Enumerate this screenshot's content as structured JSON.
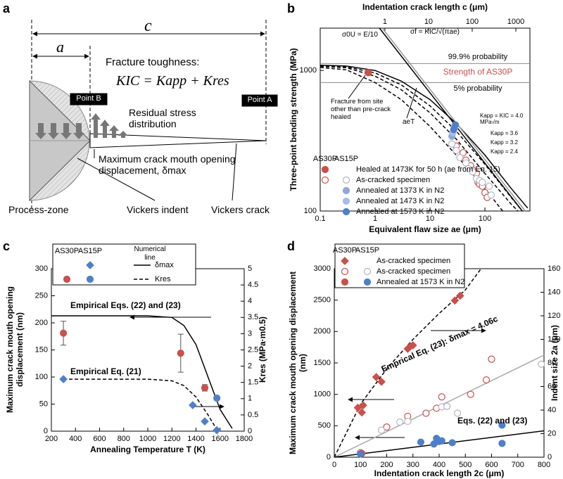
{
  "diagram": {
    "panel": "a",
    "c": "c",
    "a": "a",
    "title": "Fracture toughness:",
    "equation": "KIC = Kapp + Kres",
    "point_b": "Point B",
    "point_a": "Point A",
    "residual": "Residual stress distribution",
    "delta": "Maximum crack mouth opening displacement, δmax",
    "process_zone": "Process-zone",
    "indent": "Vickers indent",
    "crack": "Vickers crack"
  },
  "chart_data": [
    {
      "panel": "b",
      "type": "scatter",
      "xscale": "log",
      "yscale": "log",
      "x2scale": "log",
      "xlabel": "Equivalent flaw size ae (μm)",
      "x2label": "Indentation crack length c (μm)",
      "ylabel": "Three-point bending strength (MPa)",
      "xlim": [
        0.1,
        660
      ],
      "xticks": [
        0.1,
        1,
        10,
        100
      ],
      "x2lim": [
        0.033,
        2100
      ],
      "x2ticks": [
        1,
        10,
        100,
        1000
      ],
      "ylim": [
        100,
        2000
      ],
      "yticks": [
        100,
        1000
      ],
      "hlines": [
        {
          "value": 1120,
          "label": "99.9% probability"
        },
        {
          "value": 820,
          "label": "5% probability"
        }
      ],
      "band_label": "Strength of AS30P",
      "band_color": "#c9504b",
      "legend_groups": [
        "AS30P",
        "AS15P"
      ],
      "legend_frame": false,
      "annotations": [
        "σ0U = E/10",
        "σf = KIC/√(πae)",
        "Fracture from site other than pre-crack healed",
        "aeT",
        "Kapp = KIC = 4.0 MPa√m",
        "Kapp = 3.6",
        "Kapp = 3.2",
        "Kapp = 2.4"
      ],
      "series": [
        {
          "name": "Healed at 1473K for 50 h (ae from Eq. 15)",
          "group": "AS30P",
          "marker": "circle",
          "filled": true,
          "color": "#c9504b",
          "x": [
            0.75
          ],
          "values": [
            965
          ]
        },
        {
          "name": "As-cracked specimen",
          "group": "AS30P",
          "marker": "circle",
          "filled": false,
          "color": "#c9504b",
          "x": [
            30,
            40,
            45,
            55,
            60,
            70,
            75,
            80,
            90,
            100,
            110
          ],
          "values": [
            290,
            260,
            230,
            210,
            195,
            185,
            160,
            155,
            150,
            135,
            125
          ]
        },
        {
          "name": "As-cracked specimen",
          "group": "AS15P",
          "marker": "circle",
          "filled": false,
          "color": "#b4b4c4",
          "x": [
            25,
            30,
            35,
            45,
            50,
            60,
            70,
            80,
            90,
            120,
            130
          ],
          "values": [
            300,
            270,
            240,
            220,
            200,
            190,
            170,
            165,
            160,
            150,
            130
          ]
        },
        {
          "name": "Annealed at 1373 K in N2",
          "group": "AS15P",
          "marker": "circle",
          "filled": true,
          "color": "#8fa8d8",
          "x": [
            25,
            27
          ],
          "values": [
            340,
            380
          ]
        },
        {
          "name": "Annealed at 1473 K in N2",
          "group": "AS15P",
          "marker": "circle",
          "filled": true,
          "color": "#a9bce4",
          "x": [
            26,
            28
          ],
          "values": [
            360,
            395
          ]
        },
        {
          "name": "Annealed at 1573 K in N2",
          "group": "AS15P",
          "marker": "circle",
          "filled": true,
          "color": "#4f7fc8",
          "x": [
            27,
            29
          ],
          "values": [
            380,
            410
          ]
        },
        {
          "line": "solid",
          "color": "#000000",
          "x": [
            0.1,
            0.3,
            1,
            3,
            10,
            30,
            100,
            300,
            600
          ],
          "values": [
            1090,
            1075,
            1000,
            840,
            620,
            420,
            250,
            145,
            105
          ]
        },
        {
          "line": "dashed",
          "color": "#000000",
          "x": [
            0.1,
            0.3,
            1,
            3,
            10,
            30,
            100,
            300,
            480
          ],
          "values": [
            1080,
            1060,
            960,
            790,
            560,
            370,
            215,
            125,
            100
          ]
        },
        {
          "line": "dashed",
          "color": "#000000",
          "x": [
            0.1,
            0.3,
            1,
            3,
            10,
            30,
            100,
            300,
            400
          ],
          "values": [
            1070,
            1045,
            910,
            730,
            500,
            325,
            185,
            112,
            100
          ]
        },
        {
          "line": "dashed",
          "color": "#000000",
          "x": [
            0.1,
            0.3,
            1,
            3,
            10,
            30,
            100,
            210
          ],
          "values": [
            1050,
            1010,
            820,
            620,
            400,
            250,
            145,
            100
          ]
        },
        {
          "line": "solid",
          "color": "#000000",
          "x": [
            1.2,
            480
          ],
          "values": [
            2000,
            100
          ]
        },
        {
          "line": "solid",
          "color": "#999999",
          "x": [
            1.35,
            540
          ],
          "values": [
            2000,
            100
          ]
        }
      ]
    },
    {
      "panel": "c",
      "type": "scatter",
      "xlabel": "Annealing Temperature T (K)",
      "ylabel": "Maximum crack mouth opening displacement (nm)",
      "y2label": "Kres (MPa·m0.5)",
      "xlim": [
        200,
        1800
      ],
      "xticks": [
        200,
        400,
        600,
        800,
        1000,
        1200,
        1400,
        1600,
        1800
      ],
      "ylim": [
        0,
        300
      ],
      "yticks": [
        0,
        50,
        100,
        150,
        200,
        250,
        300
      ],
      "y2lim": [
        0,
        5
      ],
      "y2ticks": [
        0,
        0.5,
        1,
        1.5,
        2,
        2.5,
        3,
        3.5,
        4,
        4.5,
        5
      ],
      "legend_groups": [
        "AS30P",
        "AS15P"
      ],
      "legend_frame": true,
      "legend_line_title": "Numerical line",
      "annotations": [
        "Empirical Eqs. (22) and (23)",
        "Empirical Eq. (21)"
      ],
      "series": [
        {
          "group": "AS15P",
          "marker": "diamond",
          "filled": true,
          "color": "#4f7fc8",
          "axis": "y2",
          "x": [
            300,
            1373,
            1473,
            1573
          ],
          "values": [
            1.6,
            0.8,
            0.3,
            0.03
          ]
        },
        {
          "group": "AS30P",
          "marker": "circle",
          "filled": true,
          "color": "#c9504b",
          "x": [
            300,
            1273,
            1473
          ],
          "values": [
            181,
            144,
            80
          ],
          "errors": [
            22,
            35,
            6
          ]
        },
        {
          "group": "AS15P",
          "marker": "circle",
          "filled": true,
          "color": "#4f7fc8",
          "x": [
            1573
          ],
          "values": [
            61
          ]
        },
        {
          "name": "δmax",
          "line": "solid",
          "color": "#000000",
          "x": [
            200,
            1000,
            1200,
            1300,
            1400,
            1500,
            1600,
            1700
          ],
          "values": [
            213,
            213,
            210,
            195,
            160,
            100,
            40,
            5
          ]
        },
        {
          "name": "Kres",
          "line": "dashed",
          "color": "#000000",
          "axis": "y2",
          "x": [
            300,
            1000,
            1200,
            1300,
            1400,
            1500,
            1573
          ],
          "values": [
            1.6,
            1.6,
            1.55,
            1.4,
            1.05,
            0.5,
            0.05
          ]
        }
      ]
    },
    {
      "panel": "d",
      "type": "scatter",
      "xlabel": "Indentation crack length 2c (μm)",
      "ylabel": "Maximum crack mouth opening displacement (nm)",
      "y2label": "Indent size 2a (μm)",
      "xlim": [
        0,
        800
      ],
      "xticks": [
        0,
        100,
        200,
        300,
        400,
        500,
        600,
        700,
        800
      ],
      "ylim": [
        0,
        3000
      ],
      "yticks": [
        0,
        500,
        1000,
        1500,
        2000,
        2500,
        3000
      ],
      "y2lim": [
        0,
        160
      ],
      "y2ticks": [
        0,
        20,
        40,
        60,
        80,
        100,
        120,
        140,
        160
      ],
      "legend_groups": [
        "AS30P",
        "AS15P"
      ],
      "legend_frame": true,
      "annotations": [
        "Emprical Eq. (23): δmax = 4.06c",
        "Eqs. (22) and (23)"
      ],
      "series": [
        {
          "name": "As-cracked specimen",
          "group": "AS30P",
          "marker": "diamond",
          "filled": true,
          "color": "#c9504b",
          "axis": "y2",
          "x": [
            90,
            105,
            110,
            160,
            180,
            280,
            290,
            300,
            460,
            480
          ],
          "values": [
            42,
            38,
            44,
            68,
            64,
            92,
            94,
            95,
            133,
            137
          ]
        },
        {
          "name": "As-cracked specimen",
          "group": "AS30P",
          "marker": "circle",
          "filled": false,
          "color": "#c9504b",
          "x": [
            100,
            200,
            280,
            350,
            390,
            410,
            520,
            580,
            600
          ],
          "values": [
            70,
            480,
            650,
            700,
            780,
            960,
            1000,
            1230,
            1560
          ]
        },
        {
          "name": "As-cracked specimen",
          "group": "AS15P",
          "marker": "circle",
          "filled": false,
          "color": "#b4b4c4",
          "x": [
            180,
            250,
            280,
            410,
            430,
            470,
            790
          ],
          "values": [
            430,
            560,
            570,
            800,
            810,
            700,
            1480
          ]
        },
        {
          "name": "Annealed at 1573 K in N2",
          "group": "AS30P",
          "marker": "circle",
          "filled": true,
          "color": "#c9504b",
          "x": [
            105
          ],
          "values": [
            60
          ]
        },
        {
          "name": "Annealed at 1573 K in N2",
          "group": "AS15P",
          "marker": "circle",
          "filled": true,
          "color": "#4f7fc8",
          "x": [
            100,
            330,
            380,
            390,
            400,
            410,
            450,
            640,
            640
          ],
          "values": [
            50,
            240,
            210,
            300,
            250,
            260,
            230,
            510,
            220
          ]
        },
        {
          "line": "dashed",
          "color": "#000000",
          "axis": "y2",
          "x": [
            0,
            100,
            200,
            300,
            400,
            500,
            560
          ],
          "values": [
            0,
            45,
            75,
            100,
            122,
            142,
            160
          ]
        },
        {
          "line": "solid",
          "color": "#aaaaaa",
          "x": [
            0,
            800
          ],
          "values": [
            0,
            1624
          ]
        },
        {
          "line": "solid",
          "color": "#000000",
          "x": [
            0,
            800
          ],
          "values": [
            0,
            420
          ]
        }
      ]
    }
  ]
}
